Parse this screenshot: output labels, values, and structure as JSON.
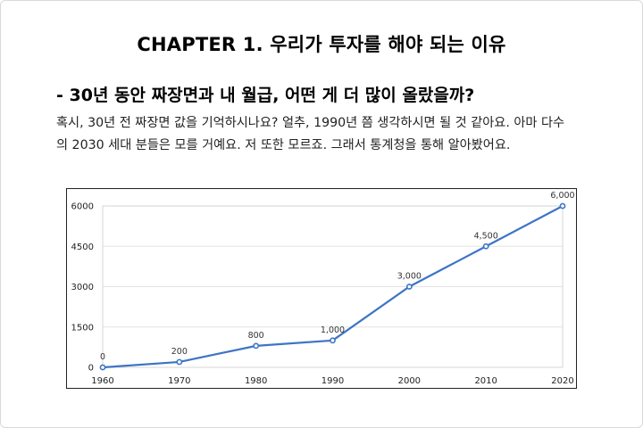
{
  "page": {
    "title": "CHAPTER 1. 우리가 투자를 해야 되는 이유",
    "subtitle": "- 30년 동안 짜장면과 내 월급, 어떤 게 더 많이 올랐을까?",
    "paragraph_line1": "혹시, 30년 전 짜장면 값을 기억하시나요? 얼추, 1990년 쯤 생각하시면 될 것 같아요. 아마 다수",
    "paragraph_line2": "의 2030 세대 분들은 모를 거예요. 저 또한 모르죠. 그래서 통계청을 통해 알아봤어요."
  },
  "chart_data": {
    "type": "line",
    "x": [
      1960,
      1970,
      1980,
      1990,
      2000,
      2010,
      2020
    ],
    "series": [
      {
        "values": [
          0,
          200,
          800,
          1000,
          3000,
          4500,
          6000
        ]
      }
    ],
    "data_labels": [
      "0",
      "200",
      "800",
      "1,000",
      "3,000",
      "4,500",
      "6,000"
    ],
    "ytick_labels": [
      "0",
      "1500",
      "3000",
      "4500",
      "6000"
    ],
    "xtick_labels": [
      "1960",
      "1970",
      "1980",
      "1990",
      "2000",
      "2010",
      "2020"
    ],
    "ylim": [
      0,
      6000
    ],
    "grid": true,
    "line_color": "#3d74c6"
  }
}
